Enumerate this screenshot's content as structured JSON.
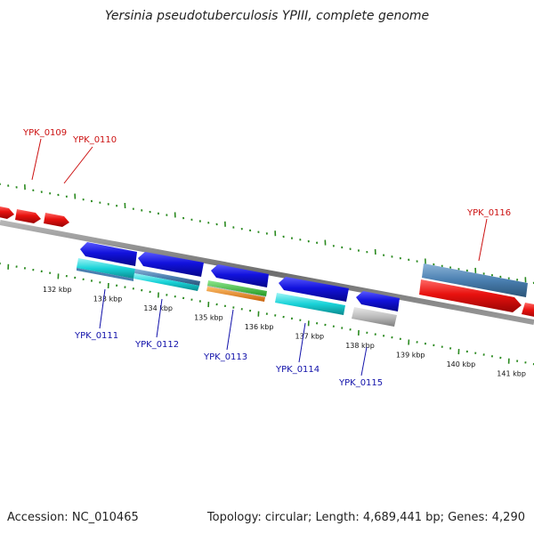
{
  "title": "Yersinia pseudotuberculosis YPIII, complete genome",
  "footer": {
    "accession": "Accession: NC_010465",
    "summary": "Topology: circular; Length: 4,689,441 bp; Genes: 4,290"
  },
  "colors": {
    "forward_red": "#e8120f",
    "reverse_blue": "#1212dd",
    "cyan": "#19d3d8",
    "steel_blue": "#4a7fb0",
    "green": "#3cc63c",
    "orange": "#f08a16",
    "gray": "#b8b8b8",
    "tick_green": "#2a8a1f",
    "label_red": "#cc1111",
    "label_blue": "#1111aa"
  },
  "scale_labels": [
    "132 kbp",
    "133 kbp",
    "134 kbp",
    "135 kbp",
    "136 kbp",
    "137 kbp",
    "138 kbp",
    "139 kbp",
    "140 kbp",
    "141 kbp"
  ],
  "gene_labels": {
    "top": [
      "YPK_0109",
      "YPK_0110",
      "YPK_0116"
    ],
    "bottom": [
      "YPK_0111",
      "YPK_0112",
      "YPK_0113",
      "YPK_0114",
      "YPK_0115"
    ]
  }
}
